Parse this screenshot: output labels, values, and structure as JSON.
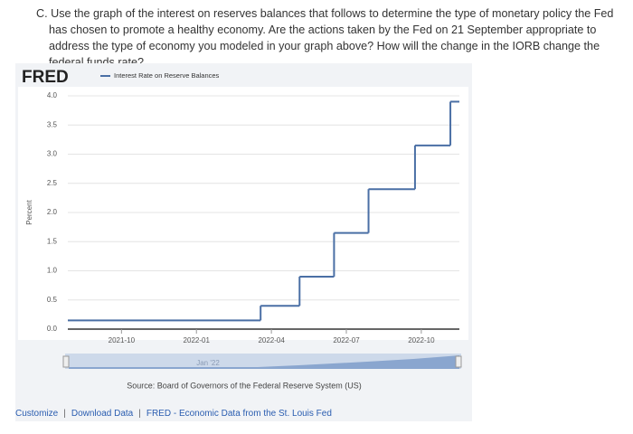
{
  "question": "C. Use the graph of the interest on reserves balances that follows to determine the type of monetary policy the Fed has chosen to promote a healthy economy. Are the actions taken by the Fed on 21 September appropriate to address the type of economy you modeled in your graph above? How will the change in the IORB change the federal funds rate?",
  "logo": "FRED",
  "navigator_label": "Jan '22",
  "source": "Source: Board of Governors of the Federal Reserve System (US)",
  "footer_links": [
    "Customize",
    "Download Data",
    "FRED - Economic Data from the St. Louis Fed"
  ],
  "chart_data": {
    "type": "step",
    "ylabel": "Percent",
    "x": [
      2021.571,
      2022.214,
      2022.344,
      2022.459,
      2022.574,
      2022.729,
      2022.847
    ],
    "series": [
      {
        "name": "Interest Rate on Reserve Balances",
        "color": "#4a6fa5",
        "values": [
          0.15,
          0.4,
          0.9,
          1.65,
          2.4,
          3.15,
          3.9
        ]
      }
    ],
    "xlim": [
      2021.571,
      2022.877
    ],
    "xticks": [
      {
        "value": 2021.75,
        "label": "2021-10"
      },
      {
        "value": 2022.0,
        "label": "2022-01"
      },
      {
        "value": 2022.25,
        "label": "2022-04"
      },
      {
        "value": 2022.5,
        "label": "2022-07"
      },
      {
        "value": 2022.75,
        "label": "2022-10"
      }
    ],
    "ylim": [
      0,
      4
    ],
    "yticks": [
      {
        "value": 0,
        "label": "0.0"
      },
      {
        "value": 0.5,
        "label": "0.5"
      },
      {
        "value": 1,
        "label": "1.0"
      },
      {
        "value": 1.5,
        "label": "1.5"
      },
      {
        "value": 2,
        "label": "2.0"
      },
      {
        "value": 2.5,
        "label": "2.5"
      },
      {
        "value": 3,
        "label": "3.0"
      },
      {
        "value": 3.5,
        "label": "3.5"
      },
      {
        "value": 4,
        "label": "4.0"
      }
    ],
    "grid": true
  }
}
